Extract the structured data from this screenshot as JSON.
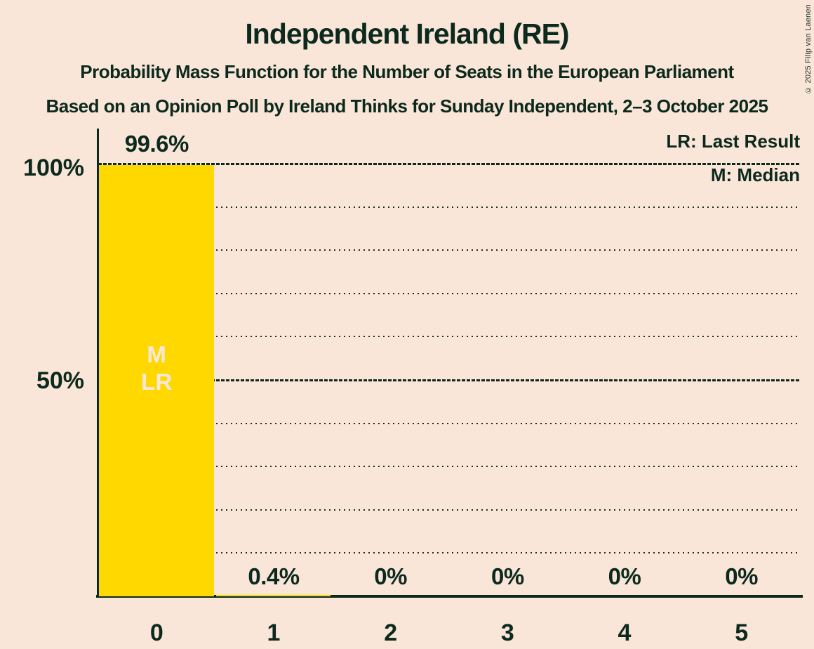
{
  "header": {
    "title": "Independent Ireland (RE)",
    "subtitle1": "Probability Mass Function for the Number of Seats in the European Parliament",
    "subtitle2": "Based on an Opinion Poll by Ireland Thinks for Sunday Independent, 2–3 October 2025"
  },
  "copyright": "© 2025 Filip van Laenen",
  "chart_data": {
    "type": "bar",
    "title": "Independent Ireland (RE)",
    "categories": [
      "0",
      "1",
      "2",
      "3",
      "4",
      "5"
    ],
    "values": [
      99.6,
      0.4,
      0,
      0,
      0,
      0
    ],
    "value_labels": [
      "99.6%",
      "0.4%",
      "0%",
      "0%",
      "0%",
      "0%"
    ],
    "xlabel": "",
    "ylabel": "",
    "ylim": [
      0,
      100
    ],
    "y_ticks": [
      {
        "label": "100%",
        "value": 100
      },
      {
        "label": "50%",
        "value": 50
      }
    ],
    "gridlines": {
      "dotted_levels": [
        10,
        20,
        30,
        40,
        60,
        70,
        80,
        90
      ],
      "dashed_levels": [
        50,
        100
      ]
    },
    "legend": [
      {
        "abbr": "LR",
        "label": "LR: Last Result",
        "position": "top-right"
      },
      {
        "abbr": "M",
        "label": "M: Median",
        "position": "top-right"
      }
    ],
    "annotations": [
      {
        "category": "0",
        "lines": [
          "M",
          "LR"
        ],
        "meaning": [
          "Median",
          "Last Result"
        ]
      }
    ],
    "bar_color": "#ffd800",
    "background_color": "#fae6d8",
    "text_color": "#0c291d",
    "marker_text_color": "#f9e9dc"
  }
}
